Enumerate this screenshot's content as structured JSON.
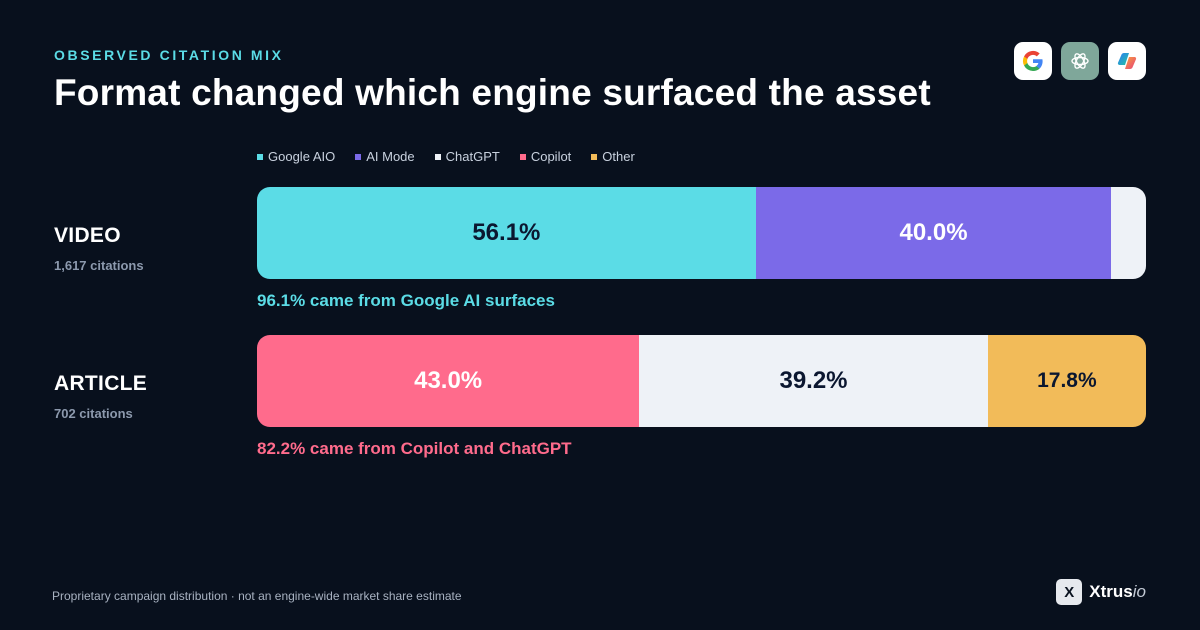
{
  "header": {
    "eyebrow": "OBSERVED CITATION MIX",
    "title": "Format changed which engine surfaced the asset"
  },
  "logos": [
    "google-icon",
    "chatgpt-icon",
    "copilot-icon"
  ],
  "legend": [
    {
      "label": "Google AIO",
      "color": "#5bdce6"
    },
    {
      "label": "AI Mode",
      "color": "#7b6ae8"
    },
    {
      "label": "ChatGPT",
      "color": "#eef2f7"
    },
    {
      "label": "Copilot",
      "color": "#ff6b8c"
    },
    {
      "label": "Other",
      "color": "#f2bb59"
    }
  ],
  "rows": [
    {
      "name": "VIDEO",
      "count": "1,617 citations",
      "note": "96.1% came from Google AI surfaces",
      "note_color": "#5bdce6"
    },
    {
      "name": "ARTICLE",
      "count": "702 citations",
      "note": "82.2% came from Copilot and ChatGPT",
      "note_color": "#ff6b8c"
    }
  ],
  "chart_data": {
    "type": "bar",
    "stacked": true,
    "orientation": "horizontal",
    "normalized_to": 100,
    "categories": [
      "VIDEO",
      "ARTICLE"
    ],
    "series": [
      {
        "name": "Google AIO",
        "color": "#5bdce6",
        "values": [
          56.1,
          0
        ],
        "labels": [
          "56.1%",
          ""
        ],
        "label_color": "#0b1730"
      },
      {
        "name": "AI Mode",
        "color": "#7b6ae8",
        "values": [
          40.0,
          0
        ],
        "labels": [
          "40.0%",
          ""
        ],
        "label_color": "#ffffff"
      },
      {
        "name": "ChatGPT",
        "color": "#eef2f7",
        "values": [
          3.9,
          39.2
        ],
        "labels": [
          "",
          "39.2%"
        ],
        "label_color": "#0b1730"
      },
      {
        "name": "Copilot",
        "color": "#ff6b8c",
        "values": [
          0,
          43.0
        ],
        "labels": [
          "",
          "43.0%"
        ],
        "label_color": "#ffffff"
      },
      {
        "name": "Other",
        "color": "#f2bb59",
        "values": [
          0,
          17.8
        ],
        "labels": [
          "",
          "17.8%"
        ],
        "label_color": "#0b1730"
      }
    ],
    "order": [
      [
        "Google AIO",
        "AI Mode",
        "ChatGPT"
      ],
      [
        "Copilot",
        "ChatGPT",
        "Other"
      ]
    ]
  },
  "footer": {
    "note": "Proprietary campaign distribution · not an engine-wide market share estimate",
    "brand_mark": "X",
    "brand_name": "Xtrus",
    "brand_suffix": "io"
  }
}
